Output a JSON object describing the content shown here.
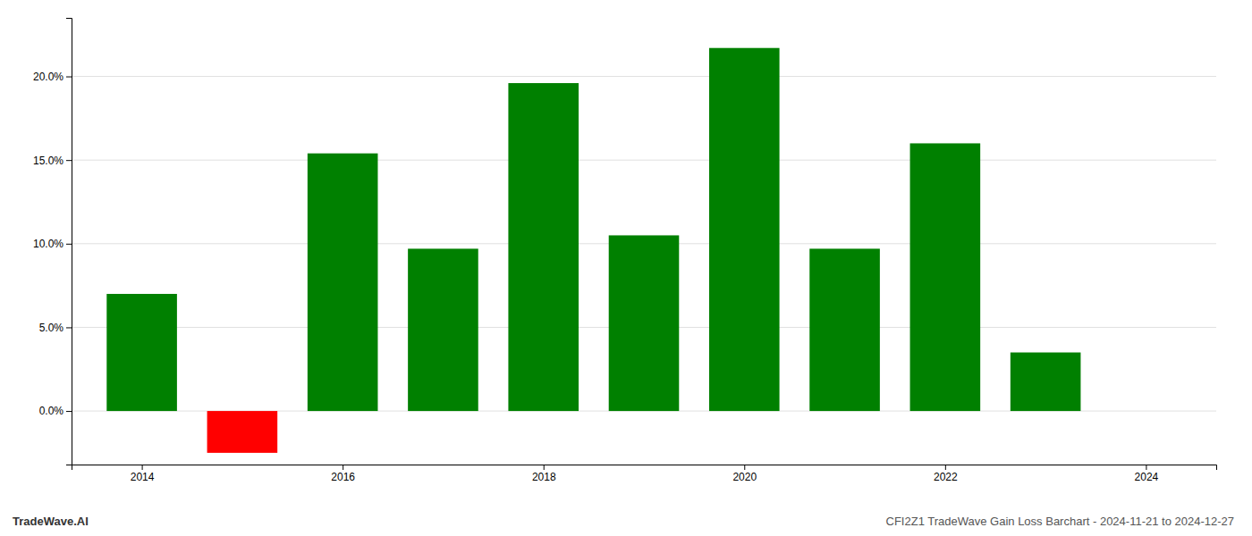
{
  "chart_data": {
    "type": "bar",
    "title": "CFI2Z1 TradeWave Gain Loss Barchart - 2024-11-21 to 2024-12-27",
    "annotations": [
      "TradeWave.AI"
    ],
    "x": [
      2014,
      2015,
      2016,
      2017,
      2018,
      2019,
      2020,
      2021,
      2022,
      2023
    ],
    "values": [
      0.07,
      -0.025,
      0.154,
      0.097,
      0.196,
      0.105,
      0.217,
      0.097,
      0.16,
      0.035
    ],
    "colors": [
      "#008000",
      "#ff0000",
      "#008000",
      "#008000",
      "#008000",
      "#008000",
      "#008000",
      "#008000",
      "#008000",
      "#008000"
    ],
    "xlim": [
      2013.3,
      2024.7
    ],
    "xticks": [
      2014,
      2016,
      2018,
      2020,
      2022,
      2024
    ],
    "ylim": [
      -0.032,
      0.235
    ],
    "yticks": [
      {
        "value": 0.0,
        "label": "0.0%"
      },
      {
        "value": 0.05,
        "label": "5.0%"
      },
      {
        "value": 0.1,
        "label": "10.0%"
      },
      {
        "value": 0.15,
        "label": "15.0%"
      },
      {
        "value": 0.2,
        "label": "20.0%"
      }
    ],
    "grid": true
  }
}
